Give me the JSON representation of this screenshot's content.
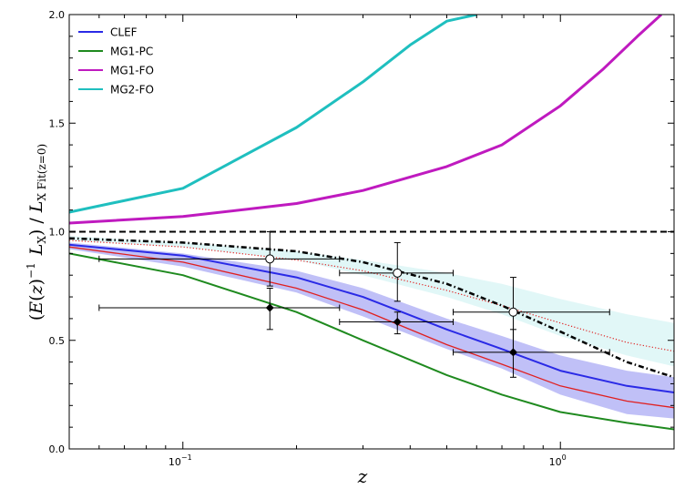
{
  "chart_data": {
    "type": "line",
    "xscale": "log",
    "xlim": [
      0.05,
      2.0
    ],
    "ylim": [
      0.0,
      2.0
    ],
    "xlabel": "z",
    "ylabel": "(E(z)−1 LX) / LX Fit(z=0)",
    "y_ticks": [
      "0.0",
      "0.5",
      "1.0",
      "1.5",
      "2.0"
    ],
    "x_ticks": [
      {
        "value": 0.1,
        "base": "10",
        "exp": "−1"
      },
      {
        "value": 1.0,
        "base": "10",
        "exp": "0"
      }
    ],
    "legend": {
      "position": "top-left",
      "entries": [
        {
          "label": "CLEF",
          "color": "#2a2ae6"
        },
        {
          "label": "MG1-PC",
          "color": "#1f8a1f"
        },
        {
          "label": "MG1-FO",
          "color": "#bf1abf"
        },
        {
          "label": "MG2-FO",
          "color": "#1fbfbf"
        }
      ]
    },
    "series": [
      {
        "name": "CLEF",
        "color": "#2a2ae6",
        "style": "solid",
        "x": [
          0.05,
          0.1,
          0.2,
          0.3,
          0.5,
          0.7,
          1.0,
          1.5,
          2.0
        ],
        "y": [
          0.94,
          0.89,
          0.79,
          0.7,
          0.55,
          0.46,
          0.36,
          0.29,
          0.26
        ]
      },
      {
        "name": "MG1-PC",
        "color": "#1f8a1f",
        "style": "solid",
        "x": [
          0.05,
          0.1,
          0.2,
          0.3,
          0.5,
          0.7,
          1.0,
          1.5,
          2.0
        ],
        "y": [
          0.9,
          0.8,
          0.63,
          0.5,
          0.34,
          0.25,
          0.17,
          0.12,
          0.09
        ]
      },
      {
        "name": "MG1-FO",
        "color": "#bf1abf",
        "style": "solid",
        "x": [
          0.05,
          0.1,
          0.2,
          0.3,
          0.5,
          0.7,
          1.0,
          1.3,
          1.6,
          1.85
        ],
        "y": [
          1.04,
          1.07,
          1.13,
          1.19,
          1.3,
          1.4,
          1.58,
          1.75,
          1.9,
          2.0
        ]
      },
      {
        "name": "MG2-FO",
        "color": "#1fbfbf",
        "style": "solid",
        "x": [
          0.05,
          0.1,
          0.2,
          0.3,
          0.4,
          0.5,
          0.6
        ],
        "y": [
          1.09,
          1.2,
          1.48,
          1.69,
          1.86,
          1.97,
          2.0
        ]
      },
      {
        "name": "fit-red-solid",
        "color": "#e02020",
        "style": "solid",
        "x": [
          0.05,
          0.1,
          0.2,
          0.3,
          0.5,
          0.7,
          1.0,
          1.5,
          2.0
        ],
        "y": [
          0.93,
          0.86,
          0.74,
          0.64,
          0.48,
          0.39,
          0.29,
          0.22,
          0.19
        ]
      },
      {
        "name": "fit-red-dotted",
        "color": "#e02020",
        "style": "dotted",
        "x": [
          0.05,
          0.1,
          0.2,
          0.3,
          0.5,
          0.7,
          1.0,
          1.5,
          2.0
        ],
        "y": [
          0.96,
          0.93,
          0.87,
          0.82,
          0.73,
          0.66,
          0.58,
          0.49,
          0.45
        ]
      },
      {
        "name": "dash-dot",
        "color": "#000000",
        "style": "dashdot",
        "x": [
          0.05,
          0.1,
          0.2,
          0.3,
          0.5,
          0.7,
          1.0,
          1.5,
          2.0
        ],
        "y": [
          0.97,
          0.95,
          0.91,
          0.86,
          0.76,
          0.66,
          0.54,
          0.4,
          0.33
        ]
      },
      {
        "name": "unity",
        "color": "#000000",
        "style": "dashed",
        "x": [
          0.05,
          2.0
        ],
        "y": [
          1.0,
          1.0
        ]
      }
    ],
    "bands": [
      {
        "name": "CLEF-band",
        "color": "#8c8cf0",
        "opacity": 0.55,
        "x": [
          0.05,
          0.1,
          0.2,
          0.3,
          0.5,
          0.7,
          1.0,
          1.5,
          2.0
        ],
        "lower": [
          0.92,
          0.84,
          0.72,
          0.61,
          0.46,
          0.37,
          0.25,
          0.16,
          0.14
        ],
        "upper": [
          0.95,
          0.9,
          0.82,
          0.74,
          0.6,
          0.52,
          0.43,
          0.36,
          0.33
        ]
      },
      {
        "name": "dotted-band",
        "color": "#c8f0f0",
        "opacity": 0.55,
        "x": [
          0.05,
          0.1,
          0.2,
          0.3,
          0.5,
          0.7,
          1.0,
          1.5,
          2.0
        ],
        "lower": [
          0.96,
          0.93,
          0.87,
          0.8,
          0.7,
          0.62,
          0.52,
          0.43,
          0.38
        ],
        "upper": [
          0.98,
          0.95,
          0.91,
          0.87,
          0.81,
          0.76,
          0.69,
          0.62,
          0.58
        ]
      }
    ],
    "points_open": [
      {
        "x": 0.17,
        "y": 0.875,
        "xlo": 0.06,
        "xhi": 0.26,
        "ylo": 0.75,
        "yhi": 1.0
      },
      {
        "x": 0.37,
        "y": 0.81,
        "xlo": 0.26,
        "xhi": 0.52,
        "ylo": 0.68,
        "yhi": 0.95
      },
      {
        "x": 0.75,
        "y": 0.63,
        "xlo": 0.52,
        "xhi": 1.35,
        "ylo": 0.44,
        "yhi": 0.79
      }
    ],
    "points_filled": [
      {
        "x": 0.17,
        "y": 0.65,
        "xlo": 0.06,
        "xhi": 0.26,
        "ylo": 0.55,
        "yhi": 0.74
      },
      {
        "x": 0.37,
        "y": 0.585,
        "xlo": 0.26,
        "xhi": 0.52,
        "ylo": 0.53,
        "yhi": 0.63
      },
      {
        "x": 0.75,
        "y": 0.445,
        "xlo": 0.52,
        "xhi": 1.35,
        "ylo": 0.33,
        "yhi": 0.55
      }
    ]
  }
}
